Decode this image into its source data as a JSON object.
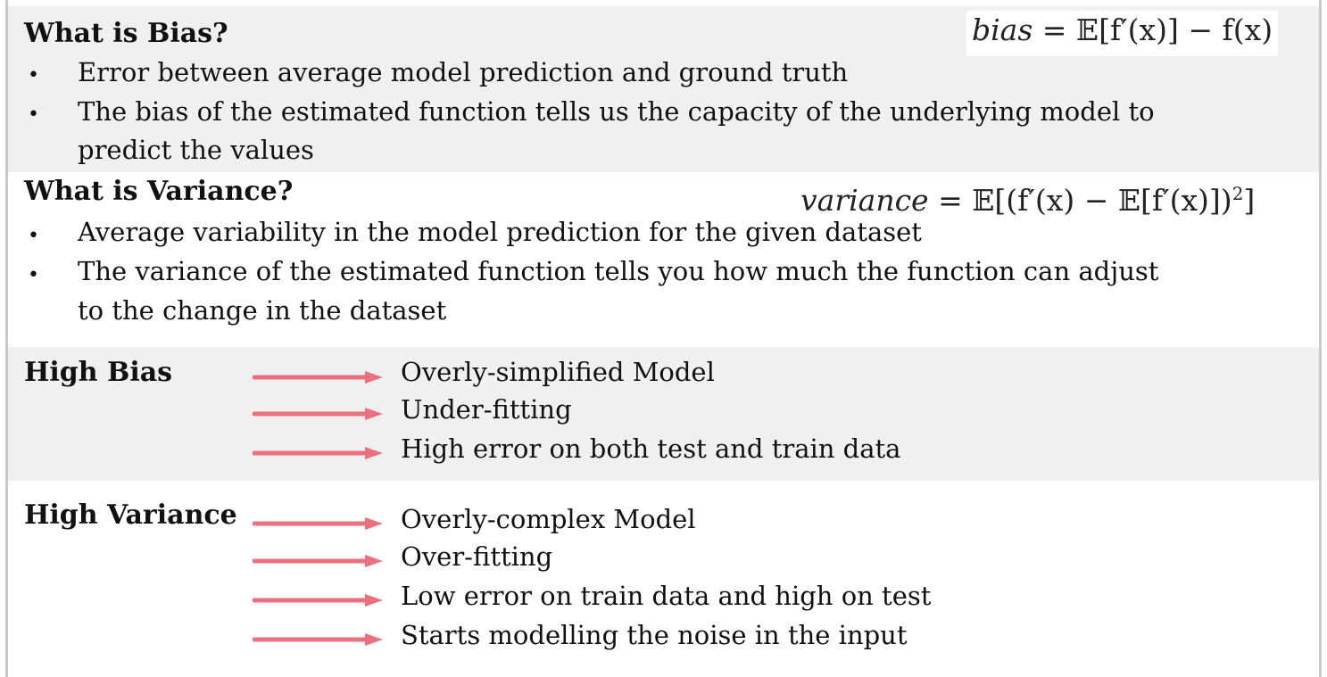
{
  "bias_section": {
    "heading": "What is Bias?",
    "formula": {
      "lhs": "bias",
      "rhs": "= 𝔼[f′(x)] − f(x)"
    },
    "bullets": [
      {
        "lines": [
          "Error between average model prediction and ground truth"
        ]
      },
      {
        "lines": [
          "The bias of the estimated function tells us the capacity of the underlying model to",
          "predict the values"
        ]
      }
    ]
  },
  "variance_section": {
    "heading": "What is Variance?",
    "formula": {
      "lhs": "variance",
      "rhs": "= 𝔼[(f′(x) − 𝔼[f′(x)])",
      "power": "2",
      "close": "]"
    },
    "bullets": [
      {
        "lines": [
          "Average variability in the model prediction for the given dataset"
        ]
      },
      {
        "lines": [
          "The variance of the estimated function tells you how much the function can adjust",
          "to the change in the dataset"
        ]
      }
    ]
  },
  "high_bias": {
    "label": "High Bias",
    "items": [
      "Overly-simplified Model",
      "Under-fitting",
      "High error on both test and train data"
    ]
  },
  "high_variance": {
    "label": "High Variance",
    "items": [
      "Overly-complex Model",
      "Over-fitting",
      "Low error on train data and high on test",
      "Starts modelling the noise in the input"
    ]
  },
  "colors": {
    "arrow": "#ec6f80",
    "band_gray": "#f0f0f0",
    "frame": "#c8c8c8"
  },
  "bullet_glyph": "•"
}
